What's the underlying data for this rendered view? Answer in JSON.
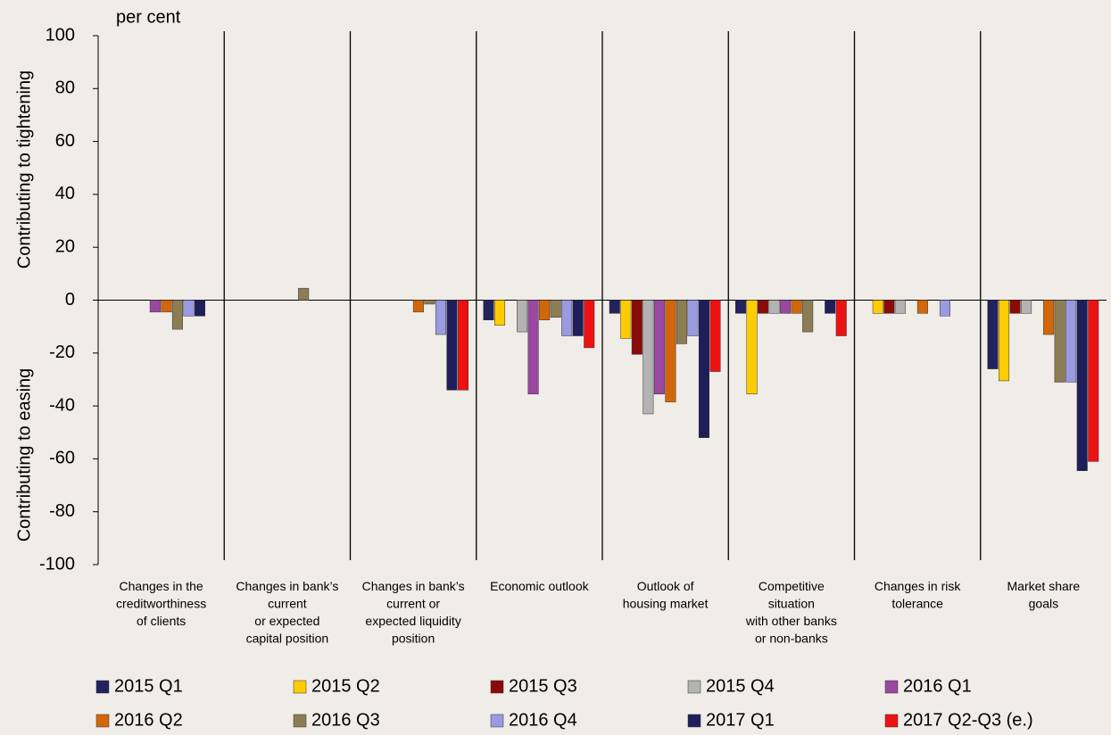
{
  "chart_data": {
    "type": "bar",
    "unit_label": "per cent",
    "ylabel_top": "Contributing to tightening",
    "ylabel_bottom": "Contributing to easing",
    "categories": [
      "Changes in the\ncreditworthiness\nof clients",
      "Changes in bank’s\ncurrent\nor expected\ncapital position",
      "Changes in bank’s\ncurrent or\nexpected liquidity\nposition",
      "Economic outlook",
      "Outlook of\nhousing market",
      "Competitive\nsituation\nwith other banks\nor non-banks",
      "Changes in risk\ntolerance",
      "Market share\ngoals"
    ],
    "series": [
      {
        "name": "2015 Q1",
        "color": "#22225e",
        "values": [
          0,
          0,
          0,
          -7.5,
          -5,
          -5,
          0,
          -26
        ]
      },
      {
        "name": "2015 Q2",
        "color": "#ffcc00",
        "values": [
          0,
          0,
          0,
          -9.5,
          -14.5,
          -35.5,
          -5,
          -30.5
        ]
      },
      {
        "name": "2015 Q3",
        "color": "#8b0a0a",
        "values": [
          0,
          0,
          0,
          0,
          -20.5,
          -5,
          -5,
          -5
        ]
      },
      {
        "name": "2015 Q4",
        "color": "#b3b3b3",
        "values": [
          0,
          0,
          0,
          -12,
          -43,
          -5,
          -5,
          -5
        ]
      },
      {
        "name": "2016 Q1",
        "color": "#9a48a0",
        "values": [
          -4.5,
          0,
          0,
          -35.5,
          -35.5,
          -5,
          0,
          0
        ]
      },
      {
        "name": "2016 Q2",
        "color": "#d2670a",
        "values": [
          -4.5,
          0,
          -4.5,
          -7.5,
          -38.5,
          -5,
          -5,
          -13
        ]
      },
      {
        "name": "2016 Q3",
        "color": "#8c7d55",
        "values": [
          -11,
          4.5,
          -1.5,
          -6.5,
          -16.5,
          -12,
          0,
          -31
        ]
      },
      {
        "name": "2016 Q4",
        "color": "#9a9ae0",
        "values": [
          -6,
          0,
          -13,
          -13.5,
          -13.5,
          0,
          -6,
          -31
        ]
      },
      {
        "name": "2017 Q1",
        "color": "#1e1e5a",
        "values": [
          -6,
          0,
          -34,
          -13.5,
          -52,
          -5,
          0,
          -64.5
        ]
      },
      {
        "name": "2017 Q2-Q3 (e.)",
        "color": "#ee1111",
        "values": [
          0,
          0,
          -34,
          -18,
          -27,
          -13.5,
          0,
          -61
        ]
      }
    ],
    "ylim": [
      -100,
      100
    ],
    "yticks": [
      -100,
      -80,
      -60,
      -40,
      -20,
      0,
      20,
      40,
      60,
      80,
      100
    ]
  }
}
